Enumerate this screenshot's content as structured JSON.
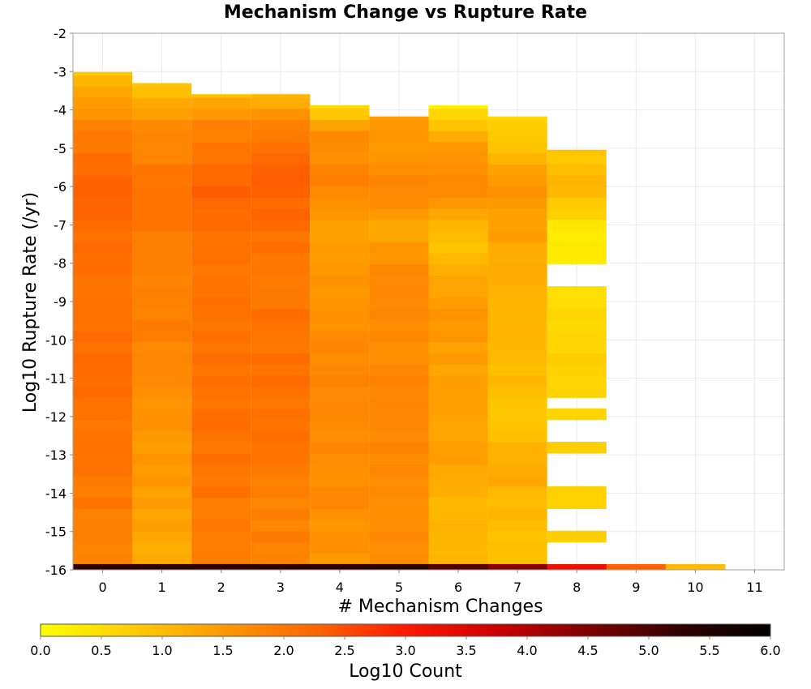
{
  "chart_data": {
    "type": "heatmap",
    "title": "Mechanism Change vs Rupture Rate",
    "xlabel": "# Mechanism Changes",
    "ylabel": "Log10 Rupture Rate (/yr)",
    "colorbar_label": "Log10 Count",
    "x_ticks": [
      0,
      1,
      2,
      3,
      4,
      5,
      6,
      7,
      8,
      9,
      10,
      11
    ],
    "y_ticks": [
      -2,
      -3,
      -4,
      -5,
      -6,
      -7,
      -8,
      -9,
      -10,
      -11,
      -12,
      -13,
      -14,
      -15,
      -16
    ],
    "colorbar_ticks": [
      "0.0",
      "0.5",
      "1.0",
      "1.5",
      "2.0",
      "2.5",
      "3.0",
      "3.5",
      "4.0",
      "4.5",
      "5.0",
      "5.5",
      "6.0"
    ],
    "xlim": [
      -0.5,
      11.5
    ],
    "ylim": [
      -16,
      -2
    ],
    "color_range": [
      0,
      6
    ],
    "colormap": [
      "#ffff00",
      "#ffcc00",
      "#ff9900",
      "#ff6600",
      "#ff1a00",
      "#cc0000",
      "#800000",
      "#330000",
      "#000000"
    ],
    "grid": true,
    "y_bin_size": 0.29,
    "y_bin_origin": -16.14,
    "columns": [
      {
        "x": 0,
        "from": -15.85,
        "to": -3.01,
        "profile": [
          [
            -15.85,
            1.9
          ],
          [
            -14.5,
            1.95
          ],
          [
            -12,
            2.05
          ],
          [
            -10,
            2.15
          ],
          [
            -8,
            2.05
          ],
          [
            -6,
            2.3
          ],
          [
            -4.5,
            1.85
          ],
          [
            -3.5,
            1.3
          ],
          [
            -3.01,
            0.8
          ]
        ]
      },
      {
        "x": 1,
        "from": -15.85,
        "to": -3.3,
        "profile": [
          [
            -15.85,
            1.2
          ],
          [
            -14.5,
            1.4
          ],
          [
            -12,
            1.6
          ],
          [
            -10,
            1.85
          ],
          [
            -8,
            1.85
          ],
          [
            -6,
            2.05
          ],
          [
            -4.5,
            1.75
          ],
          [
            -3.6,
            1.1
          ],
          [
            -3.3,
            0.8
          ]
        ]
      },
      {
        "x": 2,
        "from": -15.85,
        "to": -3.59,
        "profile": [
          [
            -15.85,
            1.9
          ],
          [
            -14.5,
            2.0
          ],
          [
            -12,
            2.05
          ],
          [
            -10,
            2.05
          ],
          [
            -8,
            2.0
          ],
          [
            -6,
            2.35
          ],
          [
            -4.5,
            1.85
          ],
          [
            -3.85,
            1.3
          ],
          [
            -3.59,
            0.9
          ]
        ]
      },
      {
        "x": 3,
        "from": -15.85,
        "to": -3.59,
        "profile": [
          [
            -15.85,
            1.85
          ],
          [
            -14.5,
            1.85
          ],
          [
            -12,
            2.05
          ],
          [
            -10,
            2.1
          ],
          [
            -8,
            1.95
          ],
          [
            -6,
            2.3
          ],
          [
            -4.5,
            1.95
          ],
          [
            -3.85,
            1.3
          ],
          [
            -3.59,
            0.9
          ]
        ]
      },
      {
        "x": 4,
        "from": -15.85,
        "to": -3.88,
        "profile": [
          [
            -15.85,
            1.5
          ],
          [
            -14.5,
            1.7
          ],
          [
            -12,
            1.75
          ],
          [
            -10,
            1.75
          ],
          [
            -8,
            1.45
          ],
          [
            -7,
            1.35
          ],
          [
            -6,
            1.85
          ],
          [
            -4.5,
            1.6
          ],
          [
            -4.1,
            0.9
          ],
          [
            -3.88,
            0.6
          ]
        ]
      },
      {
        "x": 5,
        "from": -15.85,
        "to": -4.17,
        "profile": [
          [
            -15.85,
            1.6
          ],
          [
            -14.5,
            1.75
          ],
          [
            -12,
            1.75
          ],
          [
            -10,
            1.75
          ],
          [
            -8.5,
            1.85
          ],
          [
            -7,
            1.3
          ],
          [
            -6,
            1.85
          ],
          [
            -5,
            1.55
          ],
          [
            -4.17,
            1.35
          ]
        ]
      },
      {
        "x": 6,
        "from": -15.85,
        "to": -3.88,
        "profile": [
          [
            -15.85,
            1.05
          ],
          [
            -14.5,
            1.0
          ],
          [
            -13,
            1.4
          ],
          [
            -11,
            1.35
          ],
          [
            -9,
            1.55
          ],
          [
            -7.5,
            0.85
          ],
          [
            -6,
            1.75
          ],
          [
            -5,
            1.45
          ],
          [
            -4.3,
            0.8
          ],
          [
            -3.88,
            0.25
          ]
        ]
      },
      {
        "x": 7,
        "from": -15.85,
        "to": -4.17,
        "profile": [
          [
            -15.85,
            0.9
          ],
          [
            -14.5,
            1.0
          ],
          [
            -13.5,
            1.25
          ],
          [
            -12,
            0.9
          ],
          [
            -10,
            1.1
          ],
          [
            -8,
            1.25
          ],
          [
            -6,
            1.55
          ],
          [
            -5,
            0.9
          ],
          [
            -4.5,
            0.7
          ],
          [
            -4.17,
            0.65
          ]
        ]
      },
      {
        "x": 8,
        "from": -15.27,
        "to": -5.04,
        "gaps": [
          [
            -14.89,
            -14.38
          ],
          [
            -13.87,
            -13.6
          ],
          [
            -13.39,
            -13.09
          ],
          [
            -12.74,
            -12.19
          ],
          [
            -11.86,
            -11.6
          ],
          [
            -8.15,
            -8.72
          ]
        ],
        "profile": [
          [
            -15.27,
            0.65
          ],
          [
            -13,
            0.6
          ],
          [
            -11,
            0.7
          ],
          [
            -9,
            0.55
          ],
          [
            -7.3,
            0.25
          ],
          [
            -6,
            1.05
          ],
          [
            -5.04,
            0.8
          ]
        ]
      },
      {
        "x": 9,
        "from": -16,
        "to": -16,
        "profile": [
          [
            -16,
            2.3
          ]
        ]
      },
      {
        "x": 10,
        "from": -16,
        "to": -16,
        "profile": [
          [
            -16,
            1.0
          ]
        ]
      }
    ],
    "bottom_row": {
      "from": -16.0,
      "to": -15.85,
      "values": [
        5.3,
        5.3,
        5.3,
        5.3,
        5.3,
        5.3,
        4.9,
        4.4,
        3.3,
        2.3,
        1.0
      ]
    }
  }
}
